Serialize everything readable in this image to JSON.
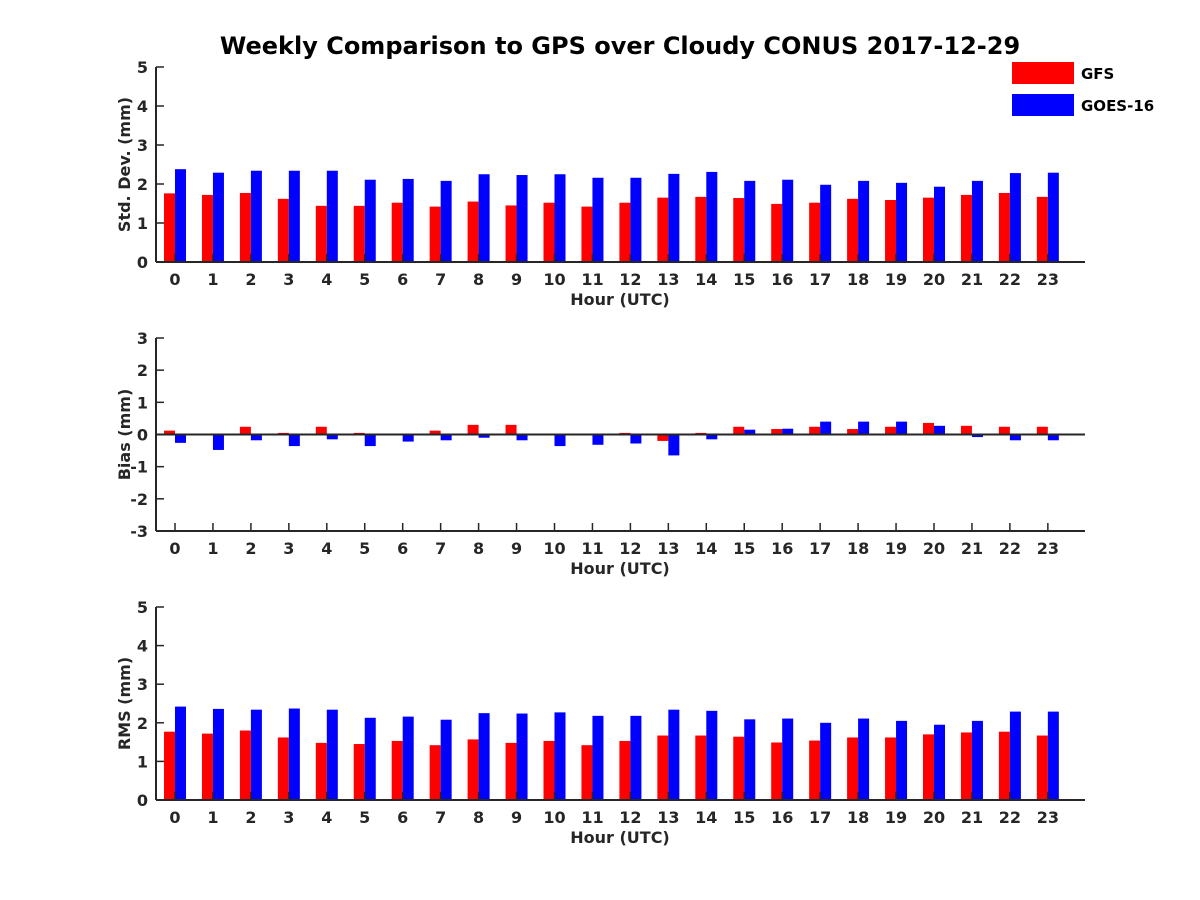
{
  "chart_data": {
    "title": "Weekly Comparison to GPS over Cloudy CONUS 2017-12-29",
    "legend": {
      "placement": "top-right",
      "entries": [
        "GFS",
        "GOES-16"
      ]
    },
    "colors": {
      "GFS": "#ff0000",
      "GOES-16": "#0000ff"
    },
    "panels": [
      {
        "type": "bar",
        "xlabel": "Hour (UTC)",
        "ylabel": "Std. Dev. (mm)",
        "ylim": [
          0,
          5
        ],
        "yticks": [
          "0",
          "1",
          "2",
          "3",
          "4",
          "5"
        ],
        "categories": [
          "0",
          "1",
          "2",
          "3",
          "4",
          "5",
          "6",
          "7",
          "8",
          "9",
          "10",
          "11",
          "12",
          "13",
          "14",
          "15",
          "16",
          "17",
          "18",
          "19",
          "20",
          "21",
          "22",
          "23"
        ],
        "series": [
          {
            "name": "GFS",
            "values": [
              1.76,
              1.72,
              1.77,
              1.62,
              1.44,
              1.44,
              1.52,
              1.42,
              1.55,
              1.45,
              1.52,
              1.42,
              1.52,
              1.65,
              1.67,
              1.64,
              1.49,
              1.52,
              1.62,
              1.59,
              1.65,
              1.72,
              1.77,
              1.67
            ]
          },
          {
            "name": "GOES-16",
            "values": [
              2.38,
              2.29,
              2.34,
              2.34,
              2.34,
              2.11,
              2.13,
              2.08,
              2.25,
              2.23,
              2.25,
              2.16,
              2.16,
              2.26,
              2.31,
              2.08,
              2.11,
              1.98,
              2.08,
              2.03,
              1.93,
              2.08,
              2.28,
              2.29
            ]
          }
        ]
      },
      {
        "type": "bar",
        "xlabel": "Hour (UTC)",
        "ylabel": "Bias (mm)",
        "ylim": [
          -3,
          3
        ],
        "yticks": [
          "-3",
          "-2",
          "-1",
          "0",
          "1",
          "2",
          "3"
        ],
        "categories": [
          "0",
          "1",
          "2",
          "3",
          "4",
          "5",
          "6",
          "7",
          "8",
          "9",
          "10",
          "11",
          "12",
          "13",
          "14",
          "15",
          "16",
          "17",
          "18",
          "19",
          "20",
          "21",
          "22",
          "23"
        ],
        "series": [
          {
            "name": "GFS",
            "values": [
              0.12,
              0.0,
              0.24,
              0.05,
              0.24,
              0.05,
              0.0,
              0.12,
              0.3,
              0.3,
              0.02,
              0.02,
              0.05,
              -0.2,
              0.05,
              0.24,
              0.17,
              0.24,
              0.17,
              0.24,
              0.36,
              0.27,
              0.24,
              0.24
            ]
          },
          {
            "name": "GOES-16",
            "values": [
              -0.26,
              -0.48,
              -0.18,
              -0.36,
              -0.15,
              -0.36,
              -0.22,
              -0.18,
              -0.1,
              -0.18,
              -0.36,
              -0.32,
              -0.28,
              -0.65,
              -0.15,
              0.15,
              0.18,
              0.4,
              0.4,
              0.4,
              0.27,
              -0.08,
              -0.18,
              -0.18
            ]
          }
        ]
      },
      {
        "type": "bar",
        "xlabel": "Hour (UTC)",
        "ylabel": "RMS (mm)",
        "ylim": [
          0,
          5
        ],
        "yticks": [
          "0",
          "1",
          "2",
          "3",
          "4",
          "5"
        ],
        "categories": [
          "0",
          "1",
          "2",
          "3",
          "4",
          "5",
          "6",
          "7",
          "8",
          "9",
          "10",
          "11",
          "12",
          "13",
          "14",
          "15",
          "16",
          "17",
          "18",
          "19",
          "20",
          "21",
          "22",
          "23"
        ],
        "series": [
          {
            "name": "GFS",
            "values": [
              1.77,
              1.72,
              1.8,
              1.62,
              1.48,
              1.45,
              1.53,
              1.42,
              1.57,
              1.48,
              1.53,
              1.42,
              1.53,
              1.67,
              1.67,
              1.64,
              1.49,
              1.54,
              1.62,
              1.62,
              1.7,
              1.75,
              1.77,
              1.67
            ]
          },
          {
            "name": "GOES-16",
            "values": [
              2.42,
              2.36,
              2.34,
              2.37,
              2.34,
              2.13,
              2.16,
              2.08,
              2.25,
              2.24,
              2.27,
              2.18,
              2.18,
              2.34,
              2.31,
              2.09,
              2.11,
              2.0,
              2.11,
              2.05,
              1.95,
              2.05,
              2.29,
              2.29
            ]
          }
        ]
      }
    ]
  }
}
